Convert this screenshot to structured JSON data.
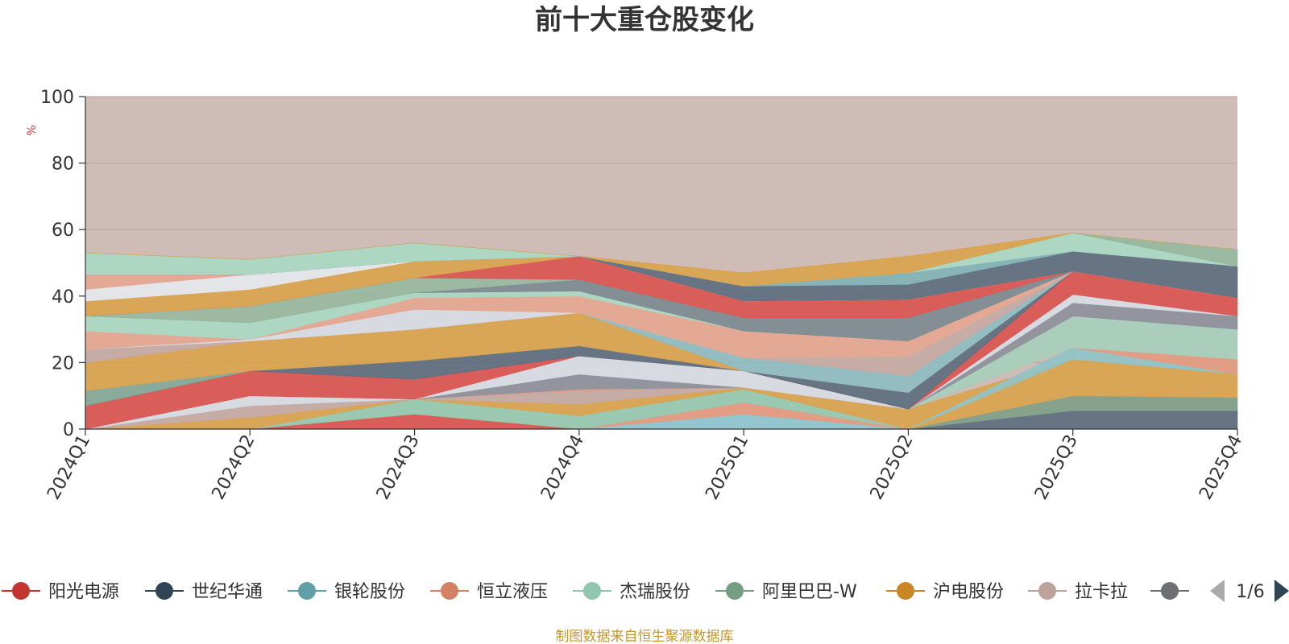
{
  "chart_data": {
    "type": "area",
    "title": "前十大重仓股变化",
    "ylabel": "%",
    "ylim": [
      0,
      100
    ],
    "yticks": [
      "0",
      "20",
      "40",
      "60",
      "80",
      "100"
    ],
    "categories": [
      "2024Q1",
      "2024Q2",
      "2024Q3",
      "2024Q4",
      "2025Q1",
      "2025Q2",
      "2025Q3",
      "2025Q4"
    ],
    "background_series_color": "#cfbcb6",
    "bands": [
      {
        "color": "#d9534f",
        "values": [
          [
            0,
            0
          ],
          [
            0,
            0
          ],
          [
            0,
            4.5
          ],
          [
            0,
            0
          ],
          [
            0,
            0
          ],
          [
            0,
            0
          ],
          [
            0,
            0
          ],
          [
            0,
            0
          ]
        ]
      },
      {
        "color": "#8dc7d1",
        "values": [
          [
            0,
            0
          ],
          [
            0,
            0
          ],
          [
            0,
            0
          ],
          [
            0,
            0
          ],
          [
            0,
            4.5
          ],
          [
            0,
            0
          ],
          [
            0,
            0
          ],
          [
            0,
            0
          ]
        ]
      },
      {
        "color": "#e29a80",
        "values": [
          [
            0,
            0
          ],
          [
            0,
            0
          ],
          [
            0,
            0
          ],
          [
            0,
            0
          ],
          [
            4.5,
            8
          ],
          [
            0,
            0
          ],
          [
            0,
            0
          ],
          [
            0,
            0
          ]
        ]
      },
      {
        "color": "#95c9b0",
        "values": [
          [
            0,
            0
          ],
          [
            0,
            0
          ],
          [
            4.5,
            9
          ],
          [
            0,
            4
          ],
          [
            8,
            12
          ],
          [
            0,
            0
          ],
          [
            0,
            0
          ],
          [
            0,
            0
          ]
        ]
      },
      {
        "color": "#5a6b7d",
        "values": [
          [
            0,
            0
          ],
          [
            0,
            0
          ],
          [
            0,
            0
          ],
          [
            0,
            0
          ],
          [
            0,
            0
          ],
          [
            0,
            0
          ],
          [
            0,
            5.5
          ],
          [
            0,
            5.5
          ]
        ]
      },
      {
        "color": "#7d9f88",
        "values": [
          [
            0,
            0
          ],
          [
            0,
            0
          ],
          [
            0,
            0
          ],
          [
            0,
            0
          ],
          [
            0,
            0
          ],
          [
            0,
            0
          ],
          [
            5.5,
            10
          ],
          [
            5.5,
            9.5
          ]
        ]
      },
      {
        "color": "#d9a24d",
        "values": [
          [
            0,
            0
          ],
          [
            0,
            3.5
          ],
          [
            9,
            9
          ],
          [
            4,
            7.5
          ],
          [
            12,
            12.5
          ],
          [
            0,
            6
          ],
          [
            10,
            21
          ],
          [
            9.5,
            16.5
          ]
        ]
      },
      {
        "color": "#8fc4c8",
        "values": [
          [
            0,
            0
          ],
          [
            0,
            0
          ],
          [
            0,
            0
          ],
          [
            0,
            0
          ],
          [
            0,
            0
          ],
          [
            0,
            0
          ],
          [
            21,
            24.5
          ],
          [
            16.5,
            16.5
          ]
        ]
      },
      {
        "color": "#c4aaa3",
        "values": [
          [
            0,
            0
          ],
          [
            3.5,
            7
          ],
          [
            9,
            9
          ],
          [
            7.5,
            11.5
          ],
          [
            12.5,
            12.5
          ],
          [
            6,
            6
          ],
          [
            24.5,
            24.5
          ],
          [
            16.5,
            16.5
          ]
        ]
      },
      {
        "color": "#e29a80",
        "values": [
          [
            0,
            0
          ],
          [
            7,
            7
          ],
          [
            9,
            9
          ],
          [
            11.5,
            12
          ],
          [
            12.5,
            12.5
          ],
          [
            6,
            6
          ],
          [
            24.5,
            24.5
          ],
          [
            16.5,
            21
          ]
        ]
      },
      {
        "color": "#a5cfbb",
        "values": [
          [
            0,
            0
          ],
          [
            7,
            7
          ],
          [
            9,
            9
          ],
          [
            12,
            12
          ],
          [
            12.5,
            12.5
          ],
          [
            6,
            6
          ],
          [
            24.5,
            34
          ],
          [
            21,
            30
          ]
        ]
      },
      {
        "color": "#8c8f9b",
        "values": [
          [
            0,
            0
          ],
          [
            7,
            7
          ],
          [
            9,
            9
          ],
          [
            12,
            16.5
          ],
          [
            12.5,
            12.5
          ],
          [
            6,
            6
          ],
          [
            34,
            38
          ],
          [
            30,
            34
          ]
        ]
      },
      {
        "color": "#d7dde5",
        "values": [
          [
            0,
            0
          ],
          [
            7,
            10
          ],
          [
            9,
            9
          ],
          [
            16.5,
            22
          ],
          [
            12.5,
            17.5
          ],
          [
            6,
            6
          ],
          [
            38,
            40.5
          ],
          [
            34,
            34
          ]
        ]
      },
      {
        "color": "#d9534f",
        "values": [
          [
            0,
            7
          ],
          [
            10,
            17.5
          ],
          [
            9,
            15
          ],
          [
            22,
            22
          ],
          [
            17.5,
            17.5
          ],
          [
            6,
            6
          ],
          [
            40.5,
            47.5
          ],
          [
            34,
            39.5
          ]
        ]
      },
      {
        "color": "#5a6b7d",
        "values": [
          [
            7,
            7
          ],
          [
            17.5,
            17.5
          ],
          [
            15,
            20.5
          ],
          [
            22,
            25
          ],
          [
            17.5,
            17.5
          ],
          [
            6,
            11
          ],
          [
            47.5,
            47.5
          ],
          [
            39.5,
            39.5
          ]
        ]
      },
      {
        "color": "#82a898",
        "values": [
          [
            7,
            11.5
          ],
          [
            17.5,
            17.5
          ],
          [
            20.5,
            20.5
          ],
          [
            25,
            25
          ],
          [
            17.5,
            17.5
          ],
          [
            11,
            11
          ],
          [
            47.5,
            47.5
          ],
          [
            39.5,
            39.5
          ]
        ]
      },
      {
        "color": "#d9a24d",
        "values": [
          [
            11.5,
            20
          ],
          [
            17.5,
            26.5
          ],
          [
            20.5,
            30
          ],
          [
            25,
            35
          ],
          [
            17.5,
            17.5
          ],
          [
            11,
            11
          ],
          [
            47.5,
            47.5
          ],
          [
            39.5,
            39.5
          ]
        ]
      },
      {
        "color": "#8dbcc2",
        "values": [
          [
            20,
            20
          ],
          [
            26.5,
            26.5
          ],
          [
            30,
            30
          ],
          [
            35,
            35
          ],
          [
            17.5,
            21.5
          ],
          [
            11,
            16
          ],
          [
            47.5,
            47.5
          ],
          [
            39.5,
            39.5
          ]
        ]
      },
      {
        "color": "#c4aaa3",
        "values": [
          [
            20,
            24
          ],
          [
            26.5,
            26.5
          ],
          [
            30,
            30
          ],
          [
            35,
            35
          ],
          [
            21.5,
            21.5
          ],
          [
            16,
            22
          ],
          [
            47.5,
            47.5
          ],
          [
            39.5,
            39.5
          ]
        ]
      },
      {
        "color": "#d7dde5",
        "values": [
          [
            24,
            24
          ],
          [
            26.5,
            27
          ],
          [
            30,
            36
          ],
          [
            35,
            35
          ],
          [
            21.5,
            21.5
          ],
          [
            22,
            22
          ],
          [
            47.5,
            47.5
          ],
          [
            39.5,
            39.5
          ]
        ]
      },
      {
        "color": "#e4a690",
        "values": [
          [
            24,
            29.5
          ],
          [
            27,
            27
          ],
          [
            36,
            39.5
          ],
          [
            35,
            40
          ],
          [
            21.5,
            29.5
          ],
          [
            22,
            26.5
          ],
          [
            47.5,
            47.5
          ],
          [
            39.5,
            39.5
          ]
        ]
      },
      {
        "color": "#a9d9c4",
        "values": [
          [
            29.5,
            34
          ],
          [
            27,
            32
          ],
          [
            39.5,
            41
          ],
          [
            40,
            41.5
          ],
          [
            29.5,
            29.5
          ],
          [
            26.5,
            26.5
          ],
          [
            47.5,
            47.5
          ],
          [
            39.5,
            39.5
          ]
        ]
      },
      {
        "color": "#7b8891",
        "values": [
          [
            34,
            34
          ],
          [
            32,
            32
          ],
          [
            41,
            41
          ],
          [
            41.5,
            45
          ],
          [
            29.5,
            33.5
          ],
          [
            26.5,
            33.5
          ],
          [
            47.5,
            47.5
          ],
          [
            39.5,
            39.5
          ]
        ]
      },
      {
        "color": "#98b8a0",
        "values": [
          [
            34,
            34
          ],
          [
            32,
            37
          ],
          [
            41,
            45.5
          ],
          [
            45,
            45
          ],
          [
            33.5,
            33.5
          ],
          [
            33.5,
            33.5
          ],
          [
            47.5,
            47.5
          ],
          [
            39.5,
            39.5
          ]
        ]
      },
      {
        "color": "#d9534f",
        "values": [
          [
            34,
            34
          ],
          [
            37,
            37
          ],
          [
            45.5,
            45.5
          ],
          [
            45,
            52
          ],
          [
            33.5,
            38.5
          ],
          [
            33.5,
            39
          ],
          [
            47.5,
            47.5
          ],
          [
            39.5,
            39.5
          ]
        ]
      },
      {
        "color": "#d9a24d",
        "values": [
          [
            34,
            38.5
          ],
          [
            37,
            42
          ],
          [
            45.5,
            50.5
          ],
          [
            52,
            52
          ],
          [
            38.5,
            38.5
          ],
          [
            39,
            39
          ],
          [
            47.5,
            47.5
          ],
          [
            39.5,
            39.5
          ]
        ]
      },
      {
        "color": "#e5e9ee",
        "values": [
          [
            38.5,
            42
          ],
          [
            42,
            46.5
          ],
          [
            50.5,
            50.5
          ],
          [
            52,
            52
          ],
          [
            38.5,
            38.5
          ],
          [
            39,
            39
          ],
          [
            47.5,
            47.5
          ],
          [
            39.5,
            39.5
          ]
        ]
      },
      {
        "color": "#e4a690",
        "values": [
          [
            42,
            46.5
          ],
          [
            46.5,
            46.5
          ],
          [
            50.5,
            50.5
          ],
          [
            52,
            52
          ],
          [
            38.5,
            38.5
          ],
          [
            39,
            39
          ],
          [
            47.5,
            47.5
          ],
          [
            39.5,
            39.5
          ]
        ]
      },
      {
        "color": "#5a6b7d",
        "values": [
          [
            46.5,
            46.5
          ],
          [
            46.5,
            46.5
          ],
          [
            50.5,
            50.5
          ],
          [
            52,
            52
          ],
          [
            38.5,
            43
          ],
          [
            39,
            43.5
          ],
          [
            47.5,
            53.5
          ],
          [
            39.5,
            49
          ]
        ]
      },
      {
        "color": "#8c8f9b",
        "values": [
          [
            46.5,
            46.5
          ],
          [
            46.5,
            46.5
          ],
          [
            50.5,
            50.5
          ],
          [
            52,
            52
          ],
          [
            43,
            43
          ],
          [
            43.5,
            43.5
          ],
          [
            53.5,
            53.5
          ],
          [
            49,
            49
          ]
        ]
      },
      {
        "color": "#7fb2b8",
        "values": [
          [
            46.5,
            46.5
          ],
          [
            46.5,
            46.5
          ],
          [
            50.5,
            50.5
          ],
          [
            52,
            52
          ],
          [
            43,
            43
          ],
          [
            43.5,
            47
          ],
          [
            53.5,
            53.5
          ],
          [
            49,
            49
          ]
        ]
      },
      {
        "color": "#a9d9c4",
        "values": [
          [
            46.5,
            53
          ],
          [
            46.5,
            51
          ],
          [
            50.5,
            56
          ],
          [
            52,
            52
          ],
          [
            43,
            43
          ],
          [
            47,
            47
          ],
          [
            53.5,
            59
          ],
          [
            49,
            49
          ]
        ]
      },
      {
        "color": "#93b89f",
        "values": [
          [
            53,
            53
          ],
          [
            51,
            51
          ],
          [
            56,
            56
          ],
          [
            52,
            52
          ],
          [
            43,
            43
          ],
          [
            47,
            47
          ],
          [
            59,
            59
          ],
          [
            49,
            54
          ]
        ]
      },
      {
        "color": "#d9a24d",
        "values": [
          [
            53,
            53
          ],
          [
            51,
            51
          ],
          [
            56,
            56
          ],
          [
            52,
            52
          ],
          [
            43,
            47
          ],
          [
            47,
            52
          ],
          [
            59,
            59
          ],
          [
            54,
            54
          ]
        ]
      }
    ]
  },
  "legend": {
    "items": [
      {
        "label": "阳光电源",
        "color": "#c23531"
      },
      {
        "label": "世纪华通",
        "color": "#2f4554"
      },
      {
        "label": "银轮股份",
        "color": "#61a0a8"
      },
      {
        "label": "恒立液压",
        "color": "#d48265"
      },
      {
        "label": "杰瑞股份",
        "color": "#91c7ae"
      },
      {
        "label": "阿里巴巴-W",
        "color": "#749f83"
      },
      {
        "label": "沪电股份",
        "color": "#ca8622"
      },
      {
        "label": "拉卡拉",
        "color": "#bda29a"
      },
      {
        "label": "",
        "color": "#6e7074"
      }
    ],
    "page": "1/6",
    "prev_icon": "triangle-left-icon",
    "next_icon": "triangle-right-icon",
    "prev_color": "#aaaaaa",
    "next_color": "#2f4554"
  },
  "source_note": "制图数据来自恒生聚源数据库"
}
